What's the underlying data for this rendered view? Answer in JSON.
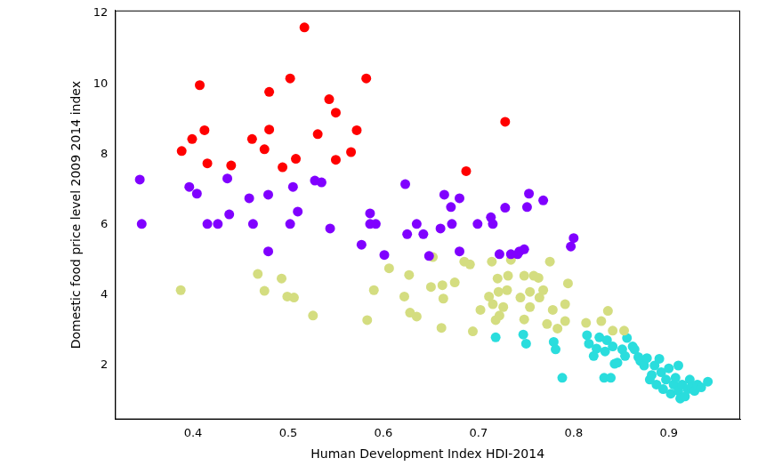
{
  "chart_data": {
    "type": "scatter",
    "x_label": "Human Development Index HDI-2014",
    "y_label": "Domestic food price level 2009 2014 index",
    "xlim": [
      0.318,
      0.975
    ],
    "xticks": [
      0.4,
      0.5,
      0.6,
      0.7,
      0.8,
      0.9
    ],
    "ylim": [
      0.47,
      12.08
    ],
    "yticks": [
      2,
      4,
      6,
      8,
      10,
      12
    ],
    "grid": false,
    "marker": "circle",
    "series": [
      {
        "color": "#ff0000",
        "x": [
          0.388,
          0.399,
          0.407,
          0.412,
          0.415,
          0.44,
          0.462,
          0.475,
          0.48,
          0.48,
          0.494,
          0.502,
          0.508,
          0.517,
          0.531,
          0.543,
          0.55,
          0.55,
          0.566,
          0.572,
          0.582,
          0.687,
          0.728
        ],
        "values": [
          8.09,
          8.43,
          9.96,
          8.68,
          7.74,
          7.68,
          8.43,
          8.14,
          9.77,
          8.7,
          7.63,
          10.15,
          7.87,
          11.6,
          8.57,
          9.56,
          9.18,
          7.84,
          8.06,
          8.68,
          10.15,
          7.52,
          8.92
        ]
      },
      {
        "color": "#8000ff",
        "x": [
          0.344,
          0.346,
          0.396,
          0.404,
          0.415,
          0.426,
          0.436,
          0.438,
          0.459,
          0.463,
          0.479,
          0.479,
          0.502,
          0.505,
          0.51,
          0.528,
          0.535,
          0.544,
          0.577,
          0.586,
          0.586,
          0.592,
          0.601,
          0.623,
          0.625,
          0.635,
          0.642,
          0.648,
          0.66,
          0.664,
          0.671,
          0.672,
          0.68,
          0.68,
          0.699,
          0.713,
          0.715,
          0.722,
          0.728,
          0.734,
          0.741,
          0.743,
          0.748,
          0.751,
          0.753,
          0.768,
          0.797,
          0.8
        ],
        "values": [
          7.28,
          6.02,
          7.07,
          6.88,
          6.02,
          6.02,
          7.31,
          6.29,
          6.75,
          6.02,
          5.24,
          6.85,
          6.02,
          7.07,
          6.37,
          7.25,
          7.2,
          5.89,
          5.43,
          6.32,
          6.02,
          6.02,
          5.14,
          7.15,
          5.73,
          6.02,
          5.73,
          5.11,
          5.89,
          6.85,
          6.5,
          6.02,
          6.75,
          5.24,
          6.02,
          6.21,
          6.02,
          5.16,
          6.48,
          5.16,
          5.16,
          5.24,
          5.3,
          6.5,
          6.88,
          6.69,
          5.38,
          5.62
        ]
      },
      {
        "color": "#d4dd80",
        "x": [
          0.387,
          0.468,
          0.475,
          0.493,
          0.499,
          0.506,
          0.526,
          0.583,
          0.59,
          0.606,
          0.622,
          0.627,
          0.628,
          0.635,
          0.65,
          0.652,
          0.661,
          0.662,
          0.663,
          0.675,
          0.685,
          0.691,
          0.694,
          0.702,
          0.711,
          0.714,
          0.715,
          0.718,
          0.72,
          0.721,
          0.722,
          0.726,
          0.73,
          0.731,
          0.734,
          0.744,
          0.748,
          0.748,
          0.754,
          0.754,
          0.758,
          0.763,
          0.764,
          0.768,
          0.772,
          0.775,
          0.778,
          0.783,
          0.791,
          0.791,
          0.794,
          0.813,
          0.829,
          0.836,
          0.841,
          0.853
        ],
        "values": [
          4.14,
          4.6,
          4.12,
          4.47,
          3.96,
          3.93,
          3.42,
          3.29,
          4.14,
          4.76,
          3.96,
          4.57,
          3.5,
          3.39,
          4.23,
          5.08,
          3.07,
          4.28,
          3.9,
          4.36,
          4.95,
          4.87,
          2.97,
          3.58,
          3.96,
          4.95,
          3.74,
          3.29,
          4.47,
          4.09,
          3.42,
          3.66,
          4.14,
          4.55,
          5.0,
          3.93,
          4.55,
          3.31,
          3.66,
          4.09,
          4.55,
          4.49,
          3.93,
          4.14,
          3.18,
          4.95,
          3.58,
          3.05,
          3.74,
          3.26,
          4.33,
          3.21,
          3.26,
          3.55,
          2.99,
          2.99
        ]
      },
      {
        "color": "#2adddd",
        "x": [
          0.718,
          0.747,
          0.75,
          0.779,
          0.781,
          0.788,
          0.814,
          0.816,
          0.821,
          0.824,
          0.827,
          0.832,
          0.833,
          0.835,
          0.839,
          0.841,
          0.843,
          0.846,
          0.851,
          0.854,
          0.856,
          0.862,
          0.864,
          0.868,
          0.87,
          0.874,
          0.877,
          0.88,
          0.882,
          0.885,
          0.887,
          0.89,
          0.892,
          0.894,
          0.897,
          0.9,
          0.902,
          0.905,
          0.907,
          0.91,
          0.91,
          0.912,
          0.914,
          0.917,
          0.92,
          0.922,
          0.924,
          0.927,
          0.93,
          0.934,
          0.941
        ],
        "values": [
          2.8,
          2.88,
          2.62,
          2.67,
          2.46,
          1.65,
          2.86,
          2.62,
          2.27,
          2.48,
          2.8,
          1.65,
          2.4,
          2.72,
          1.65,
          2.54,
          2.05,
          2.08,
          2.46,
          2.27,
          2.78,
          2.54,
          2.46,
          2.24,
          2.13,
          2.0,
          2.21,
          1.6,
          1.73,
          2.0,
          1.46,
          2.19,
          1.81,
          1.33,
          1.6,
          1.92,
          1.2,
          1.46,
          1.65,
          1.28,
          2.0,
          1.06,
          1.46,
          1.12,
          1.33,
          1.6,
          1.38,
          1.28,
          1.46,
          1.38,
          1.54
        ]
      }
    ]
  }
}
